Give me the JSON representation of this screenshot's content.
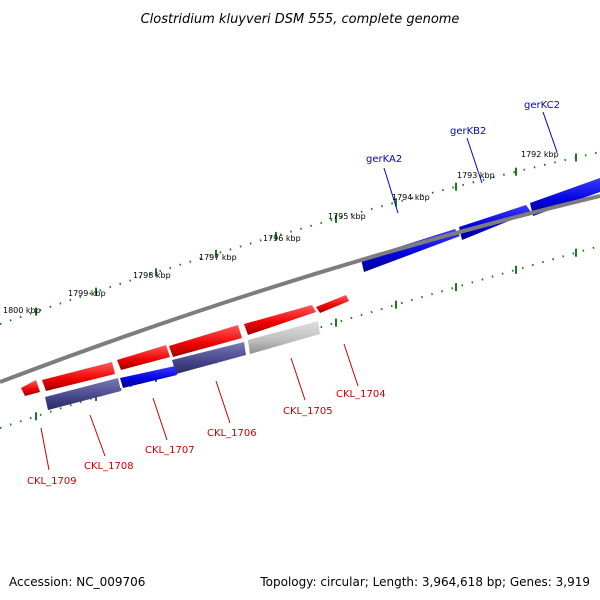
{
  "title": "Clostridium kluyveri DSM 555, complete genome",
  "accession": "Accession: NC_009706",
  "topology": "Topology: circular; Length: 3,964,618 bp; Genes: 3,919",
  "colors": {
    "forward_gene": "#0000ee",
    "reverse_gene": "#ee0000",
    "reverse_gene_alt": "#4a4a8c",
    "pseudo_gene": "#bbbbbb",
    "forward_label": "#0000cc",
    "reverse_label": "#cc0000",
    "backbone": "#8a8a8a",
    "tick": "#1a7a1a"
  },
  "ticks": [
    {
      "label": "1792 kbp"
    },
    {
      "label": "1793 kbp"
    },
    {
      "label": "1794 kbp"
    },
    {
      "label": "1795 kbp"
    },
    {
      "label": "1796 kbp"
    },
    {
      "label": "1797 kbp"
    },
    {
      "label": "1798 kbp"
    },
    {
      "label": "1799 kbp"
    },
    {
      "label": "1800 kbp"
    }
  ],
  "forward_genes": [
    {
      "name": "gerKA2"
    },
    {
      "name": "gerKB2"
    },
    {
      "name": "gerKC2"
    }
  ],
  "reverse_genes": [
    {
      "name": "CKL_1704"
    },
    {
      "name": "CKL_1705"
    },
    {
      "name": "CKL_1706"
    },
    {
      "name": "CKL_1707"
    },
    {
      "name": "CKL_1708"
    },
    {
      "name": "CKL_1709"
    }
  ]
}
